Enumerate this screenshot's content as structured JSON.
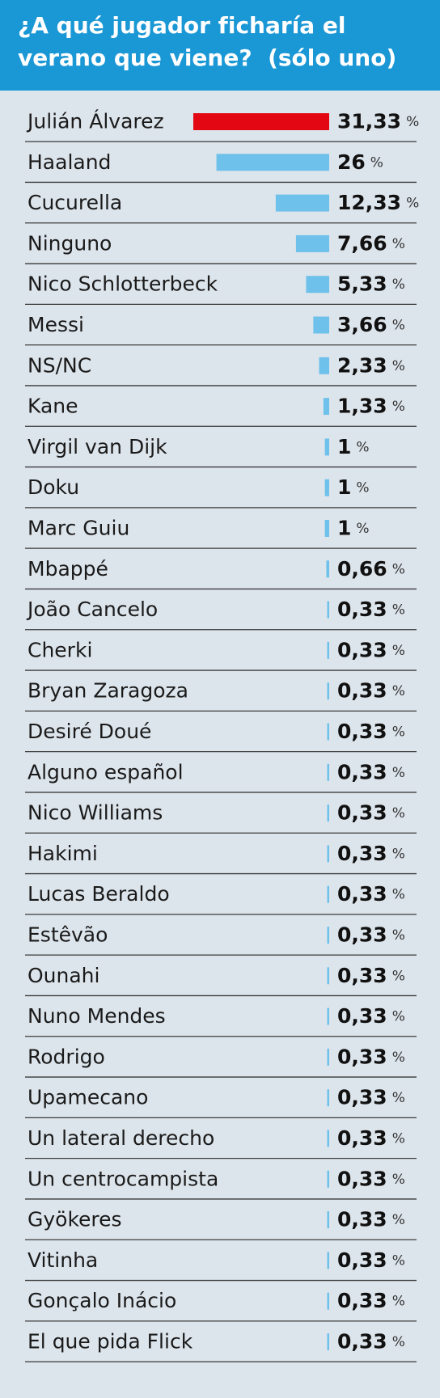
{
  "chart_data": {
    "type": "bar",
    "orientation": "horizontal",
    "title": "¿A qué jugador ficharía el verano que viene?  (sólo uno)",
    "unit": "%",
    "categories": [
      "Julián Álvarez",
      "Haaland",
      "Cucurella",
      "Ninguno",
      "Nico Schlotterbeck",
      "Messi",
      "NS/NC",
      "Kane",
      "Virgil van Dijk",
      "Doku",
      "Marc Guiu",
      "Mbappé",
      "João Cancelo",
      "Cherki",
      "Bryan Zaragoza",
      "Desiré Doué",
      "Alguno español",
      "Nico Williams",
      "Hakimi",
      "Lucas Beraldo",
      "Estêvão",
      "Ounahi",
      "Nuno Mendes",
      "Rodrigo",
      "Upamecano",
      "Un lateral derecho",
      "Un centrocampista",
      "Gyökeres",
      "Vitinha",
      "Gonçalo Inácio",
      "El que pida Flick"
    ],
    "values": [
      31.33,
      26,
      12.33,
      7.66,
      5.33,
      3.66,
      2.33,
      1.33,
      1,
      1,
      1,
      0.66,
      0.33,
      0.33,
      0.33,
      0.33,
      0.33,
      0.33,
      0.33,
      0.33,
      0.33,
      0.33,
      0.33,
      0.33,
      0.33,
      0.33,
      0.33,
      0.33,
      0.33,
      0.33,
      0.33
    ],
    "value_labels": [
      "31,33",
      "26",
      "12,33",
      "7,66",
      "5,33",
      "3,66",
      "2,33",
      "1,33",
      "1",
      "1",
      "1",
      "0,66",
      "0,33",
      "0,33",
      "0,33",
      "0,33",
      "0,33",
      "0,33",
      "0,33",
      "0,33",
      "0,33",
      "0,33",
      "0,33",
      "0,33",
      "0,33",
      "0,33",
      "0,33",
      "0,33",
      "0,33",
      "0,33",
      "0,33"
    ],
    "colors": [
      "#e30613",
      "#6ec1ea",
      "#6ec1ea",
      "#6ec1ea",
      "#6ec1ea",
      "#6ec1ea",
      "#6ec1ea",
      "#6ec1ea",
      "#6ec1ea",
      "#6ec1ea",
      "#6ec1ea",
      "#6ec1ea",
      "#6ec1ea",
      "#6ec1ea",
      "#6ec1ea",
      "#6ec1ea",
      "#6ec1ea",
      "#6ec1ea",
      "#6ec1ea",
      "#6ec1ea",
      "#6ec1ea",
      "#6ec1ea",
      "#6ec1ea",
      "#6ec1ea",
      "#6ec1ea",
      "#6ec1ea",
      "#6ec1ea",
      "#6ec1ea",
      "#6ec1ea",
      "#6ec1ea",
      "#6ec1ea"
    ]
  }
}
